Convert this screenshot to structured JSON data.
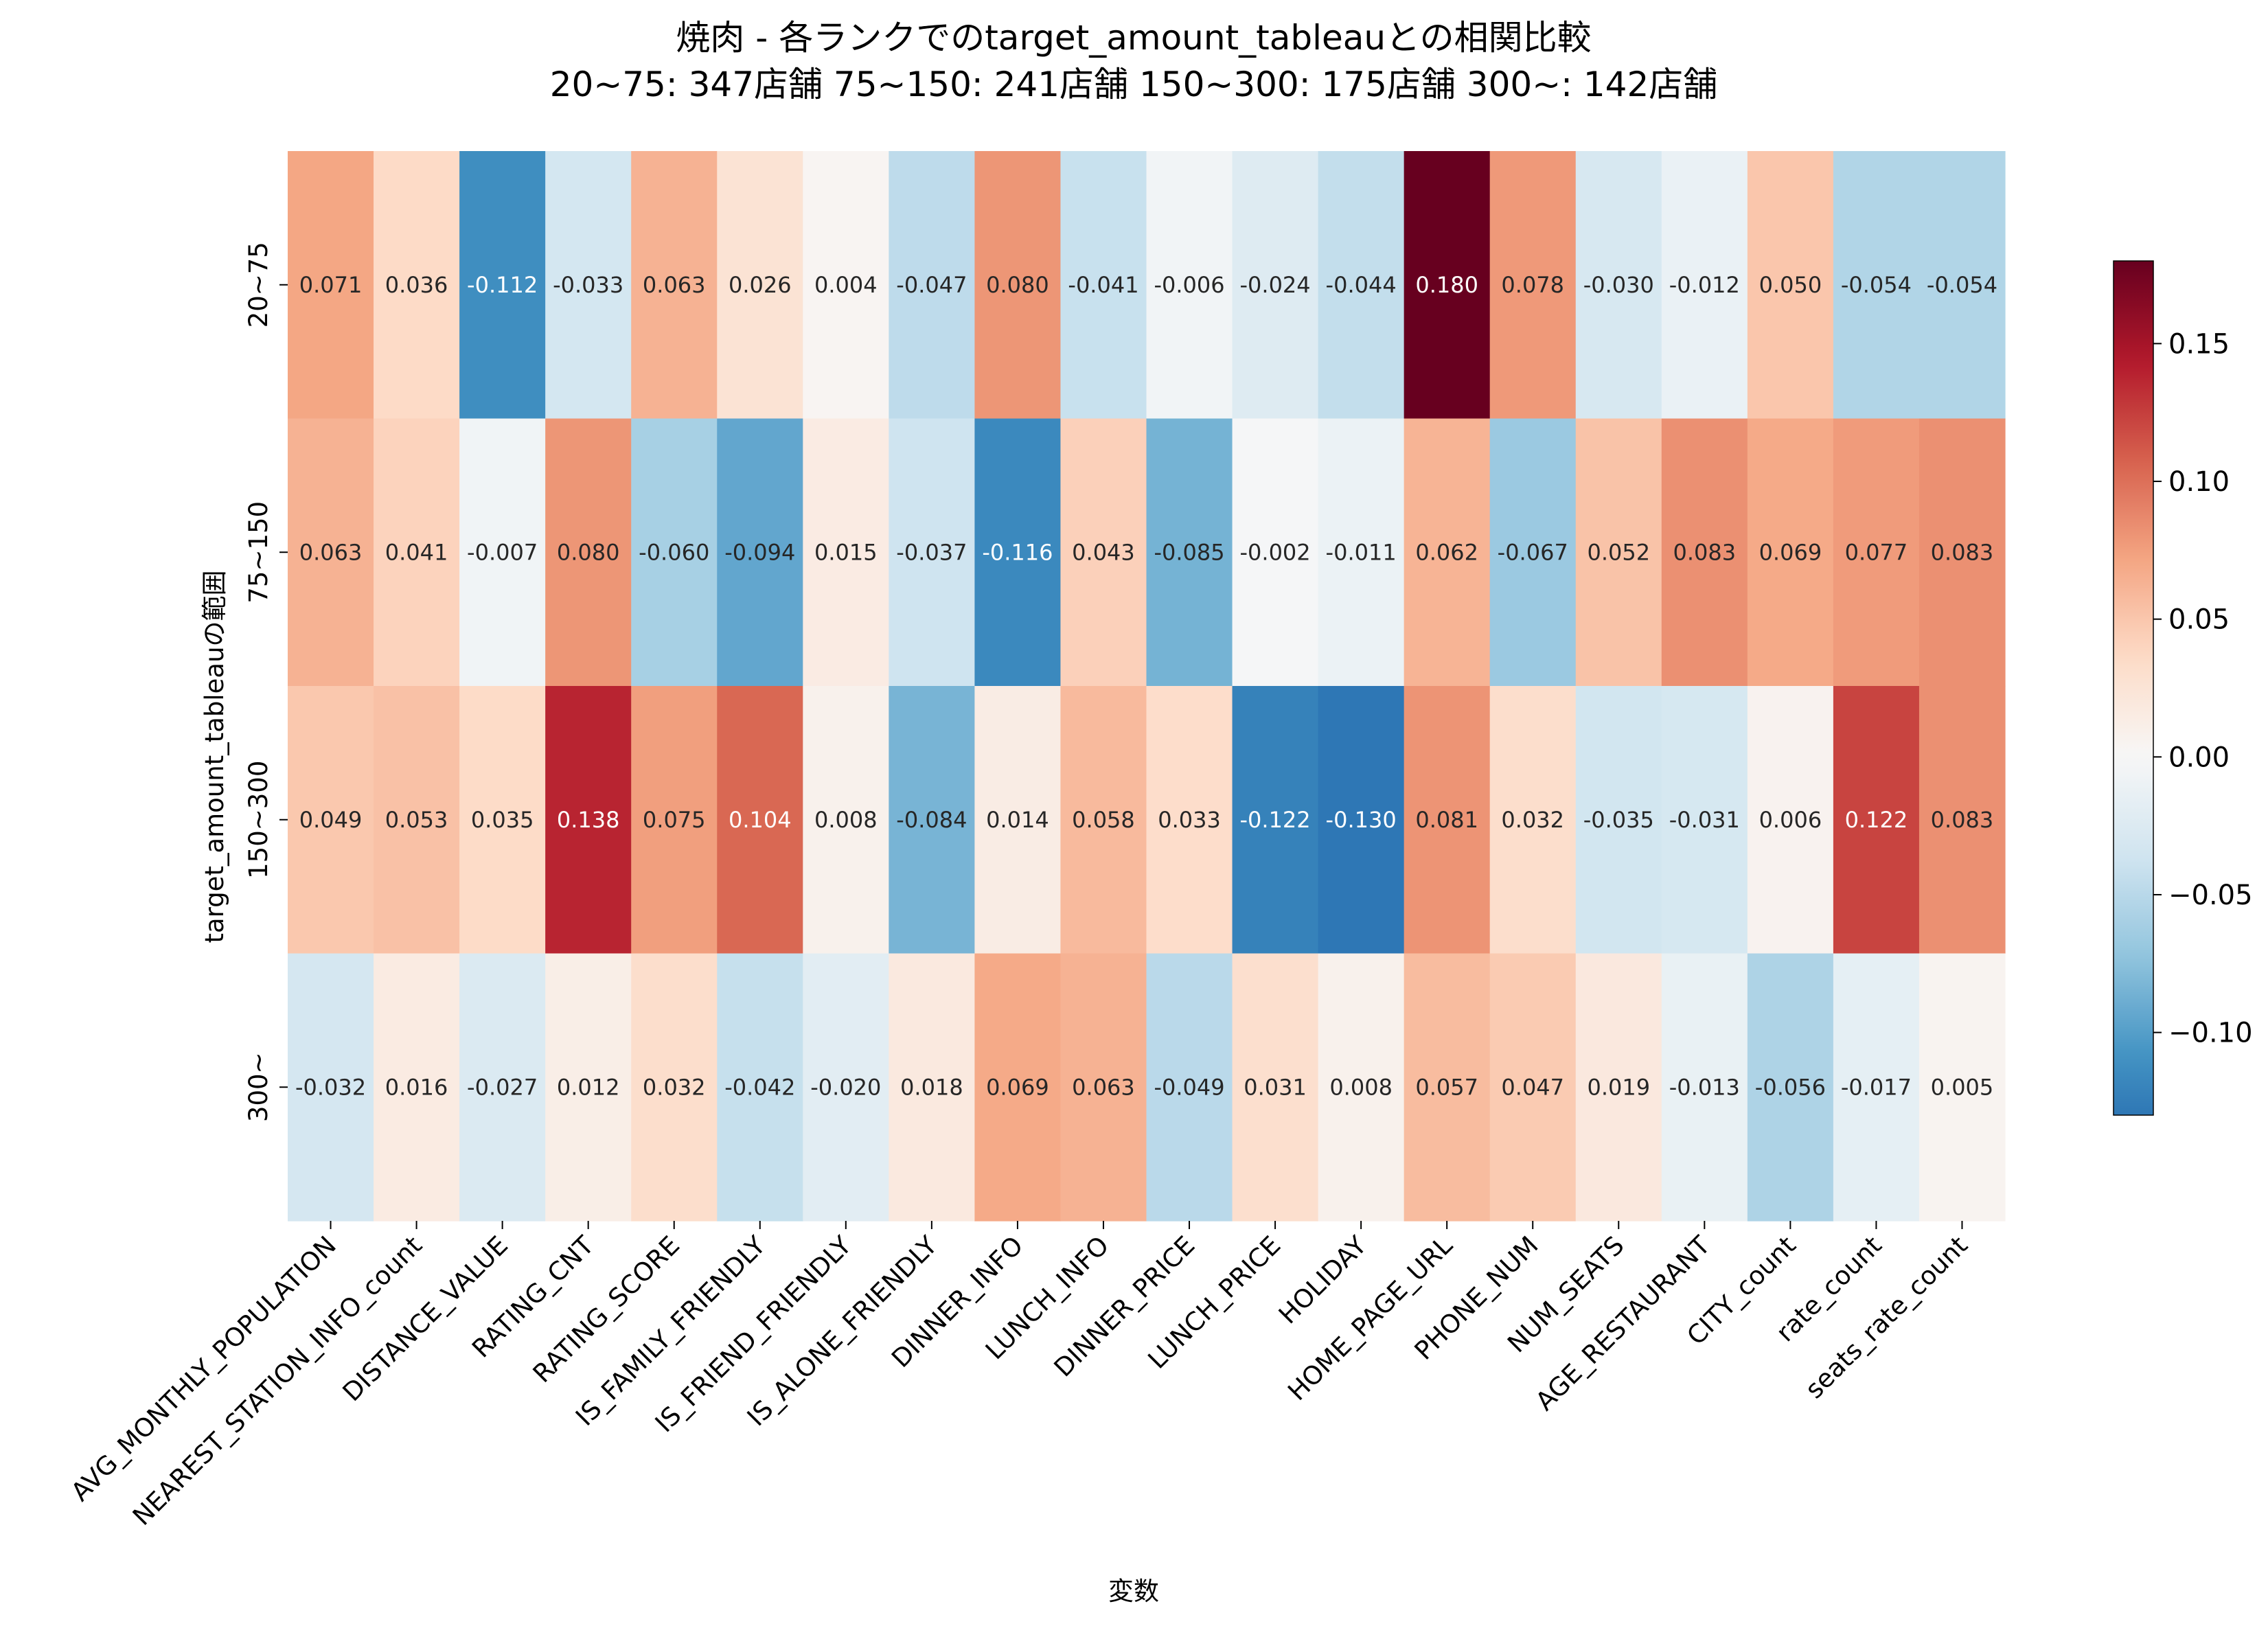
{
  "chart_data": {
    "type": "heatmap",
    "title": "焼肉 - 各ランクでのtarget_amount_tableauとの相関比較",
    "subtitle": "20~75: 347店舗  75~150: 241店舗  150~300: 175店舗  300~: 142店舗",
    "xlabel": "変数",
    "ylabel": "target_amount_tableauの範囲",
    "x_categories": [
      "AVG_MONTHLY_POPULATION",
      "NEAREST_STATION_INFO_count",
      "DISTANCE_VALUE",
      "RATING_CNT",
      "RATING_SCORE",
      "IS_FAMILY_FRIENDLY",
      "IS_FRIEND_FRIENDLY",
      "IS_ALONE_FRIENDLY",
      "DINNER_INFO",
      "LUNCH_INFO",
      "DINNER_PRICE",
      "LUNCH_PRICE",
      "HOLIDAY",
      "HOME_PAGE_URL",
      "PHONE_NUM",
      "NUM_SEATS",
      "AGE_RESTAURANT",
      "CITY_count",
      "rate_count",
      "seats_rate_count"
    ],
    "y_categories": [
      "20~75",
      "75~150",
      "150~300",
      "300~"
    ],
    "values": [
      [
        0.071,
        0.036,
        -0.112,
        -0.033,
        0.063,
        0.026,
        0.004,
        -0.047,
        0.08,
        -0.041,
        -0.006,
        -0.024,
        -0.044,
        0.18,
        0.078,
        -0.03,
        -0.012,
        0.05,
        -0.054,
        -0.054
      ],
      [
        0.063,
        0.041,
        -0.007,
        0.08,
        -0.06,
        -0.094,
        0.015,
        -0.037,
        -0.116,
        0.043,
        -0.085,
        -0.002,
        -0.011,
        0.062,
        -0.067,
        0.052,
        0.083,
        0.069,
        0.077,
        0.083
      ],
      [
        0.049,
        0.053,
        0.035,
        0.138,
        0.075,
        0.104,
        0.008,
        -0.084,
        0.014,
        0.058,
        0.033,
        -0.122,
        -0.13,
        0.081,
        0.032,
        -0.035,
        -0.031,
        0.006,
        0.122,
        0.083
      ],
      [
        -0.032,
        0.016,
        -0.027,
        0.012,
        0.032,
        -0.042,
        -0.02,
        0.018,
        0.069,
        0.063,
        -0.049,
        0.031,
        0.008,
        0.057,
        0.047,
        0.019,
        -0.013,
        -0.056,
        -0.017,
        0.005
      ]
    ],
    "colormap": "RdBu_r",
    "vmin": -0.13,
    "vmax": 0.18,
    "center": 0.0,
    "colorbar_ticks": [
      -0.1,
      -0.05,
      0.0,
      0.05,
      0.1,
      0.15
    ],
    "colorbar_tick_labels": [
      "−0.10",
      "−0.05",
      "0.00",
      "0.05",
      "0.10",
      "0.15"
    ]
  }
}
